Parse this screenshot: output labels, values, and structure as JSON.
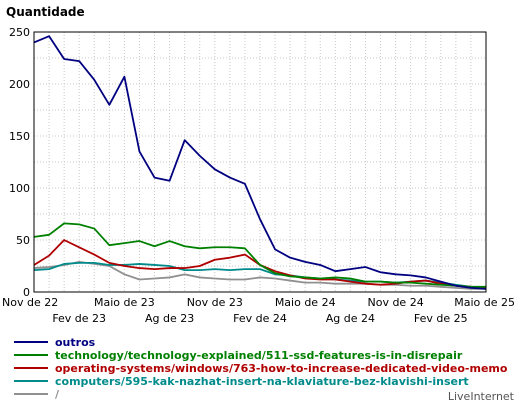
{
  "chart_data": {
    "type": "line",
    "title": "Quantidade",
    "ylim": [
      0,
      250
    ],
    "yticks": [
      0,
      50,
      100,
      150,
      200,
      250
    ],
    "grid": true,
    "legend_position": "bottom",
    "x": [
      "2022-11",
      "2022-12",
      "2023-01",
      "2023-02",
      "2023-03",
      "2023-04",
      "2023-05",
      "2023-06",
      "2023-07",
      "2023-08",
      "2023-09",
      "2023-10",
      "2023-11",
      "2023-12",
      "2024-01",
      "2024-02",
      "2024-03",
      "2024-04",
      "2024-05",
      "2024-06",
      "2024-07",
      "2024-08",
      "2024-09",
      "2024-10",
      "2024-11",
      "2024-12",
      "2025-01",
      "2025-02",
      "2025-03",
      "2025-04",
      "2025-05"
    ],
    "xtick_labels_top": [
      "Nov de 22",
      "Maio de 23",
      "Nov de 23",
      "Maio de 24",
      "Nov de 24",
      "Maio de 25"
    ],
    "xtick_labels_bottom": [
      "Fev de 23",
      "Ag de 23",
      "Fev de 24",
      "Ag de 24",
      "Fev de 25"
    ],
    "series": [
      {
        "name": "outros",
        "color": "#000080",
        "values": [
          240,
          246,
          224,
          222,
          204,
          180,
          207,
          135,
          110,
          107,
          146,
          131,
          118,
          110,
          104,
          70,
          41,
          33,
          29,
          26,
          20,
          22,
          24,
          19,
          17,
          16,
          14,
          10,
          6,
          4,
          3
        ]
      },
      {
        "name": "technology/technology-explained/511-ssd-features-is-in-disrepair",
        "color": "#008000",
        "values": [
          53,
          55,
          66,
          65,
          61,
          45,
          47,
          49,
          44,
          49,
          44,
          42,
          43,
          43,
          42,
          26,
          18,
          15,
          14,
          13,
          14,
          13,
          10,
          10,
          9,
          9,
          8,
          7,
          6,
          5,
          5
        ]
      },
      {
        "name": "operating-systems/windows/763-how-to-increase-dedicated-video-memo",
        "color": "#b00000",
        "values": [
          26,
          35,
          50,
          43,
          36,
          28,
          25,
          23,
          22,
          23,
          23,
          25,
          31,
          33,
          36,
          26,
          20,
          16,
          13,
          12,
          12,
          10,
          8,
          7,
          8,
          10,
          11,
          8,
          6,
          5,
          4
        ]
      },
      {
        "name": "computers/595-kak-nazhat-insert-na-klaviature-bez-klavishi-insert",
        "color": "#008b8b",
        "values": [
          21,
          22,
          27,
          28,
          28,
          26,
          26,
          27,
          26,
          25,
          21,
          21,
          22,
          21,
          22,
          22,
          17,
          16,
          14,
          13,
          12,
          11,
          10,
          10,
          9,
          10,
          11,
          9,
          7,
          5,
          4
        ]
      },
      {
        "name": "/",
        "color": "#909090",
        "values": [
          23,
          24,
          26,
          29,
          27,
          25,
          17,
          12,
          13,
          14,
          17,
          14,
          13,
          12,
          12,
          14,
          13,
          11,
          9,
          9,
          8,
          8,
          8,
          7,
          7,
          6,
          6,
          5,
          4,
          3,
          3
        ]
      }
    ],
    "credit": "LiveInternet"
  }
}
